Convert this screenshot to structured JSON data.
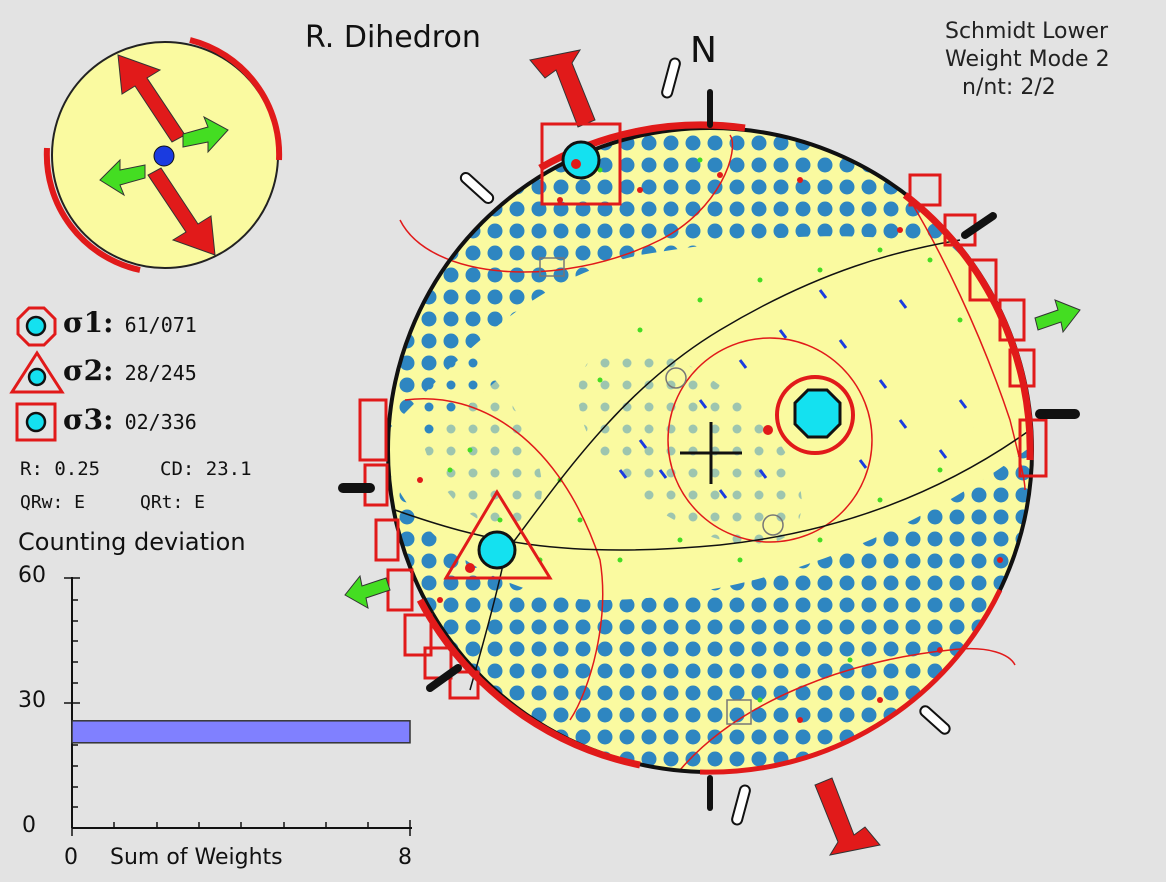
{
  "title": "R. Dihedron",
  "north_label": "N",
  "header": {
    "projection": "Schmidt Lower",
    "weight_mode": "Weight Mode 2",
    "n_nt": "n/nt: 2/2"
  },
  "stress_axes": [
    {
      "symbol": "σ1",
      "colon": ":",
      "value": "61/071",
      "marker": "octagon"
    },
    {
      "symbol": "σ2",
      "colon": ":",
      "value": "28/245",
      "marker": "triangle"
    },
    {
      "symbol": "σ3",
      "colon": ":",
      "value": "02/336",
      "marker": "square"
    }
  ],
  "stats": {
    "r_ratio": "R: 0.25",
    "cd": "CD: 23.1",
    "qrw": "QRw: E",
    "qrt": "QRt: E"
  },
  "histogram": {
    "title": "Counting deviation",
    "y_ticks": [
      "60",
      "30",
      "0"
    ],
    "x_min": "0",
    "x_label": "Sum of Weights",
    "x_max": "8",
    "bar_value": 23.1,
    "y_max": 60
  },
  "colors": {
    "background": "#e3e3e3",
    "stereonet_fill": "#fafaa0",
    "dot_blue": "#2e86c1",
    "red": "#e11a1a",
    "cyan": "#14e1f0",
    "green": "#44dd22",
    "bar": "#8080ff"
  }
}
